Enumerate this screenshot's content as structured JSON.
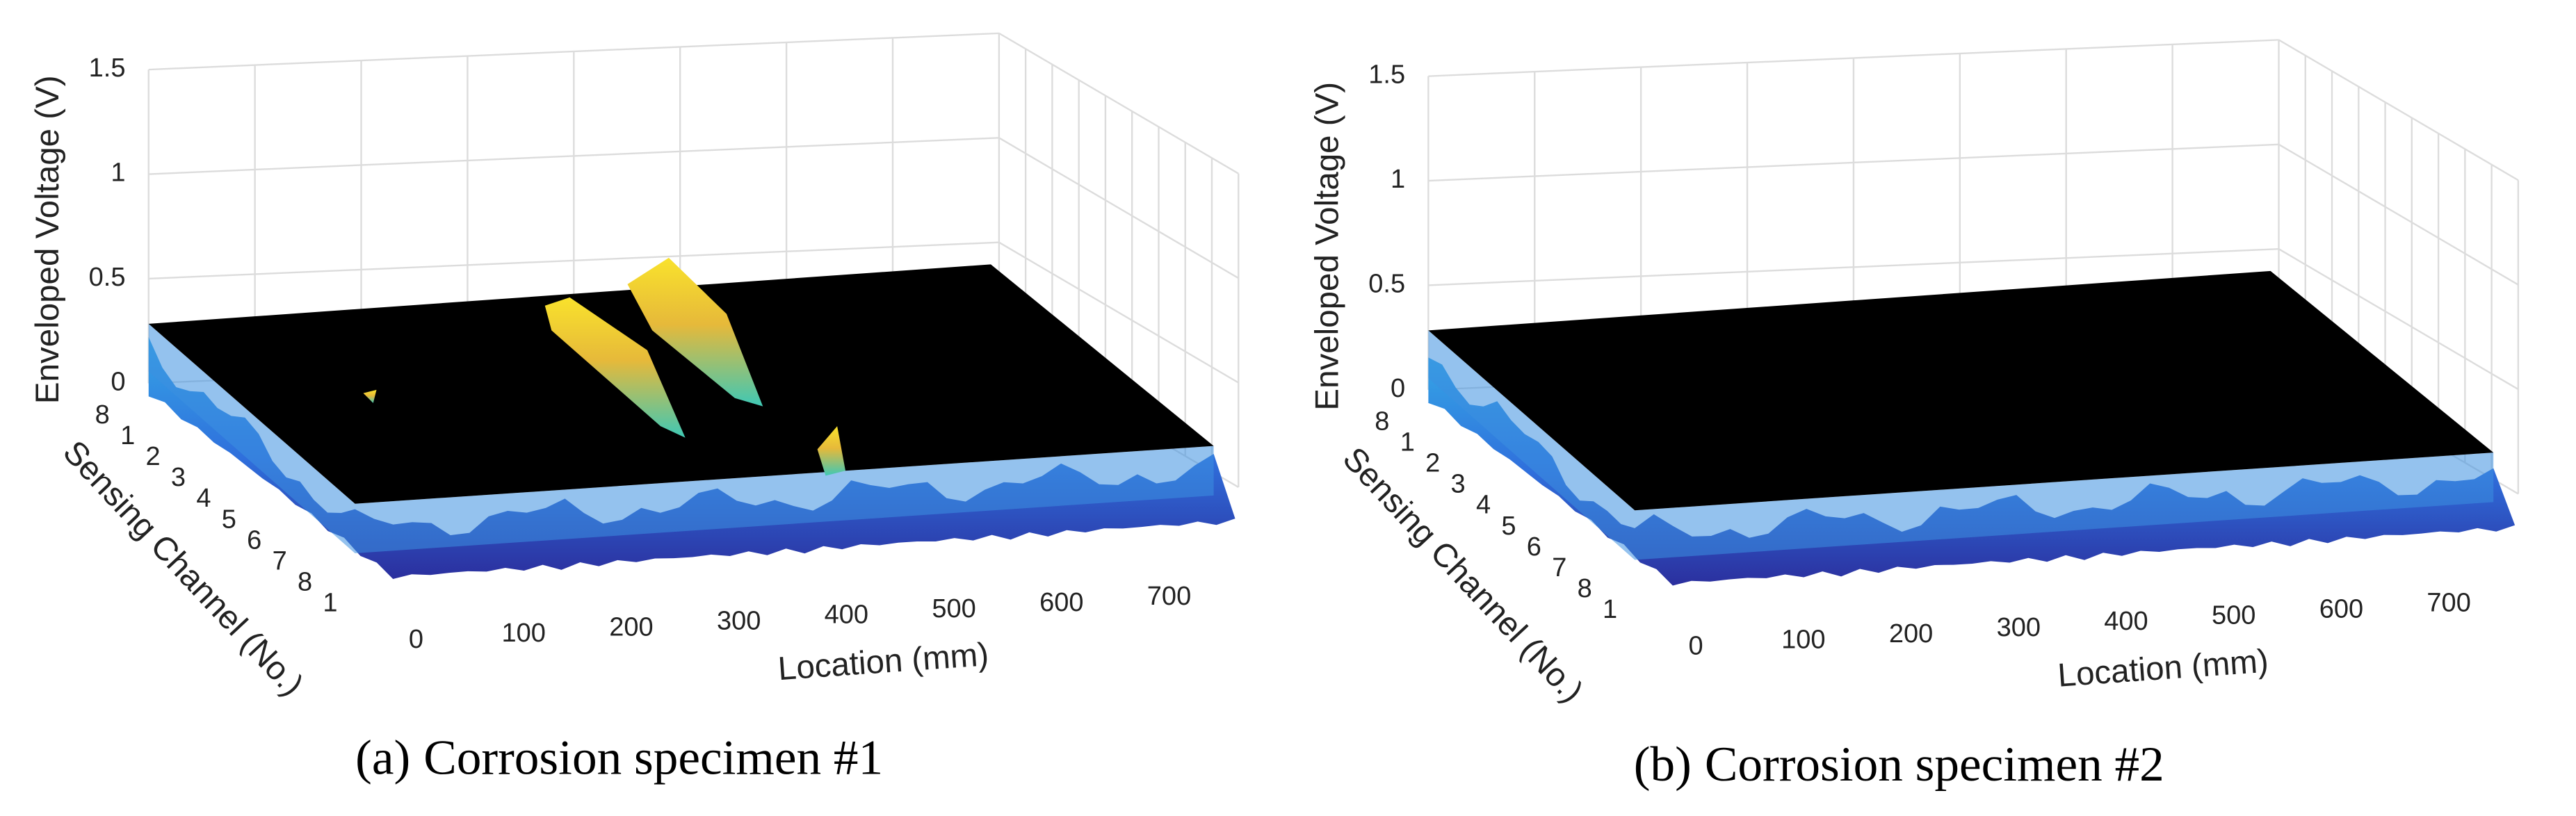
{
  "panels": [
    {
      "label": "(a)",
      "caption": "Corrosion specimen #1",
      "z_axis_label": "Enveloped Voltage (V)",
      "y_axis_label": "Sensing Channel (No.)",
      "x_axis_label": "Location (mm)",
      "z_ticks": [
        0,
        0.5,
        1,
        1.5
      ],
      "channel_ticks": [
        8,
        1,
        2,
        3,
        4,
        5,
        6,
        7,
        8,
        1
      ],
      "location_ticks": [
        0,
        100,
        200,
        300,
        400,
        500,
        600,
        700
      ]
    },
    {
      "label": "(b)",
      "caption": "Corrosion specimen #2",
      "z_axis_label": "Enveloped Voltage (V)",
      "y_axis_label": "Sensing Channel (No.)",
      "x_axis_label": "Location (mm)",
      "z_ticks": [
        0,
        0.5,
        1,
        1.5
      ],
      "channel_ticks": [
        8,
        1,
        2,
        3,
        4,
        5,
        6,
        7,
        8,
        1
      ],
      "location_ticks": [
        0,
        100,
        200,
        300,
        400,
        500,
        600,
        700
      ]
    }
  ]
}
